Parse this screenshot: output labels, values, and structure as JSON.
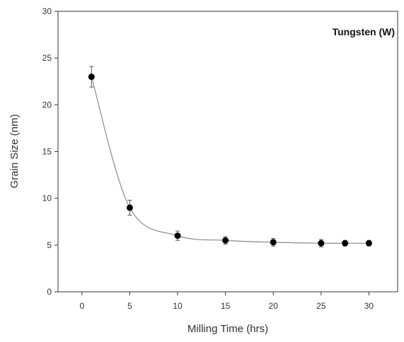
{
  "chart_data": {
    "type": "line",
    "title": "",
    "annotation": "Tungsten (W)",
    "xlabel": "Milling Time (hrs)",
    "ylabel": "Grain Size (nm)",
    "xlim": [
      -2.5,
      33
    ],
    "ylim": [
      0,
      30
    ],
    "xticks": [
      0,
      5,
      10,
      15,
      20,
      25,
      30
    ],
    "yticks": [
      0,
      5,
      10,
      15,
      20,
      25,
      30
    ],
    "grid": false,
    "legend": "none",
    "series": [
      {
        "x": [
          1,
          5,
          10,
          15,
          20,
          25,
          27.5,
          30
        ],
        "y": [
          23,
          9,
          6,
          5.5,
          5.3,
          5.2,
          5.2,
          5.2
        ],
        "error": [
          1.1,
          0.8,
          0.5,
          0.4,
          0.4,
          0.4,
          0.3,
          0.3
        ],
        "marker_color": "#000000",
        "line_color": "#8a8a8a"
      }
    ]
  }
}
